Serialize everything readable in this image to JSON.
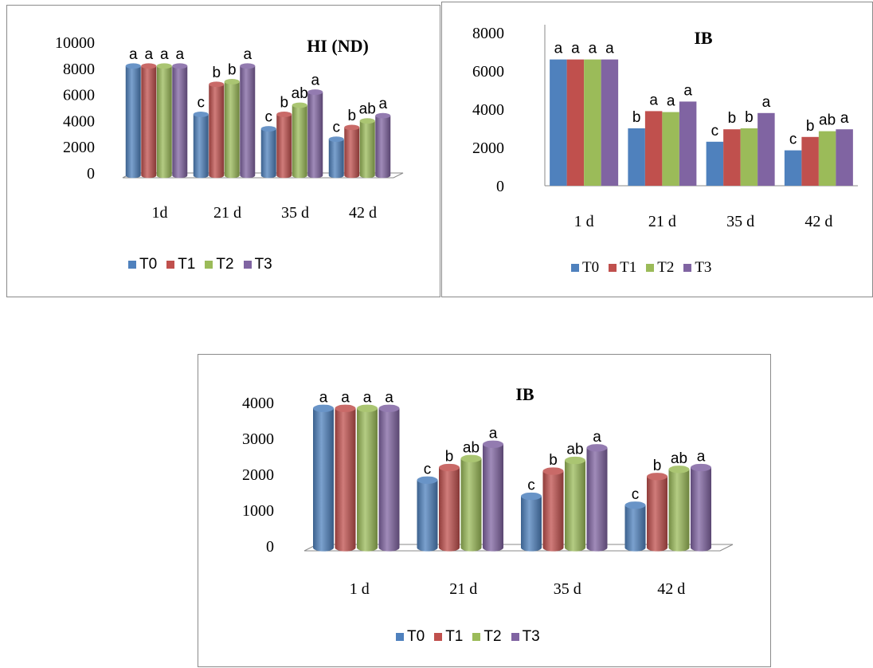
{
  "colors": {
    "T0": "#4f81bd",
    "T1": "#c0504d",
    "T2": "#9bbb59",
    "T3": "#8064a2"
  },
  "chart_data": [
    {
      "type": "bar",
      "title": "HI (ND)",
      "categories": [
        "1d",
        "21 d",
        "35 d",
        "42 d"
      ],
      "yticks": [
        "0",
        "2000",
        "4000",
        "6000",
        "8000",
        "10000"
      ],
      "ylim": [
        0,
        10000
      ],
      "legend": "bottom",
      "series": [
        {
          "name": "T0",
          "values": [
            8000,
            4300,
            3200,
            2400
          ],
          "labels": [
            "a",
            "c",
            "c",
            "c"
          ]
        },
        {
          "name": "T1",
          "values": [
            8000,
            6600,
            4300,
            3300
          ],
          "labels": [
            "a",
            "b",
            "b",
            "b"
          ]
        },
        {
          "name": "T2",
          "values": [
            8000,
            6800,
            5000,
            3800
          ],
          "labels": [
            "a",
            "b",
            "ab",
            "ab"
          ]
        },
        {
          "name": "T3",
          "values": [
            8000,
            8000,
            6000,
            4200
          ],
          "labels": [
            "a",
            "a",
            "a",
            "a"
          ]
        }
      ]
    },
    {
      "type": "bar",
      "title": "IB",
      "categories": [
        "1 d",
        "21 d",
        "35 d",
        "42 d"
      ],
      "yticks": [
        "0",
        "2000",
        "4000",
        "6000",
        "8000"
      ],
      "ylim": [
        0,
        8000
      ],
      "legend": "bottom",
      "series": [
        {
          "name": "T0",
          "values": [
            6600,
            3000,
            2300,
            1850
          ],
          "labels": [
            "a",
            "b",
            "c",
            "c"
          ]
        },
        {
          "name": "T1",
          "values": [
            6600,
            3900,
            2950,
            2550
          ],
          "labels": [
            "a",
            "a",
            "b",
            "b"
          ]
        },
        {
          "name": "T2",
          "values": [
            6600,
            3850,
            3000,
            2850
          ],
          "labels": [
            "a",
            "a",
            "b",
            "ab"
          ]
        },
        {
          "name": "T3",
          "values": [
            6600,
            4400,
            3800,
            2950
          ],
          "labels": [
            "a",
            "a",
            "a",
            "a"
          ]
        }
      ]
    },
    {
      "type": "bar",
      "title": "IB",
      "categories": [
        "1 d",
        "21 d",
        "35 d",
        "42 d"
      ],
      "yticks": [
        "0",
        "1000",
        "2000",
        "3000",
        "4000"
      ],
      "ylim": [
        0,
        4000
      ],
      "legend": "bottom",
      "series": [
        {
          "name": "T0",
          "values": [
            3750,
            1750,
            1300,
            1050
          ],
          "labels": [
            "a",
            "c",
            "c",
            "c"
          ]
        },
        {
          "name": "T1",
          "values": [
            3750,
            2100,
            2000,
            1850
          ],
          "labels": [
            "a",
            "b",
            "b",
            "b"
          ]
        },
        {
          "name": "T2",
          "values": [
            3750,
            2350,
            2300,
            2050
          ],
          "labels": [
            "a",
            "ab",
            "ab",
            "ab"
          ]
        },
        {
          "name": "T3",
          "values": [
            3750,
            2750,
            2650,
            2100
          ],
          "labels": [
            "a",
            "a",
            "a",
            "a"
          ]
        }
      ]
    }
  ]
}
